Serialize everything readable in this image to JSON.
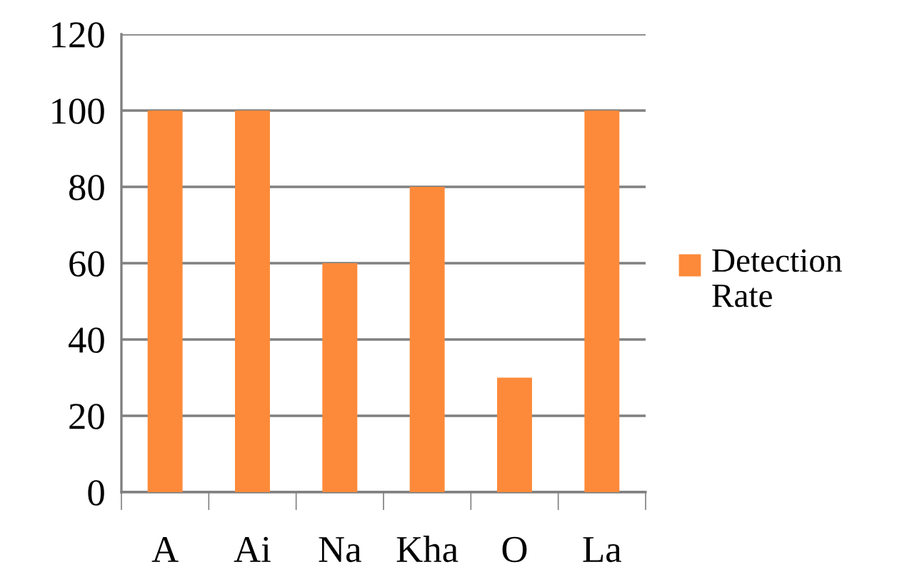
{
  "chart_data": {
    "type": "bar",
    "categories": [
      "A",
      "Ai",
      "Na",
      "Kha",
      "O",
      "La"
    ],
    "series": [
      {
        "name": "Detection Rate",
        "color": "#fd8a3a",
        "values": [
          100,
          100,
          60,
          80,
          30,
          100
        ]
      }
    ],
    "ylim": [
      0,
      120
    ],
    "yticks": [
      0,
      20,
      40,
      60,
      80,
      100,
      120
    ],
    "grid": "y",
    "legend": "right"
  }
}
